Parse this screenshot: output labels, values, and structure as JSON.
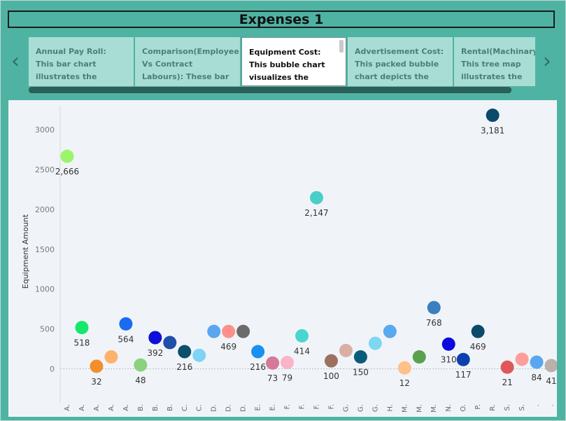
{
  "dashboard": {
    "title": "Expenses 1"
  },
  "nav": {
    "prev_icon": "chevron-left-icon",
    "next_icon": "chevron-right-icon"
  },
  "tabs": [
    {
      "label": "Annual Pay Roll: This bar chart illustrates the annual payroll"
    },
    {
      "label": "Comparison(Employee Vs Contract Labours): These bar charts"
    },
    {
      "label": "Equipment Cost: This bubble chart visualizes the expenditure on",
      "active": true
    },
    {
      "label": "Advertisement Cost: This packed bubble chart depicts the"
    },
    {
      "label": "Rental(Machinary) This tree map illustrates the"
    }
  ],
  "colors": {
    "background": "#4fb3a3",
    "plot_bg": "#f0f4f8"
  },
  "chart_data": {
    "type": "scatter",
    "ylabel": "Equipment Amount",
    "xlabel": "",
    "ylim": [
      -250,
      3300
    ],
    "yticks": [
      0,
      500,
      1000,
      1500,
      2000,
      2500,
      3000
    ],
    "ytick_labels": [
      "0",
      "500",
      "1000",
      "1500",
      "2000",
      "2500",
      "3000"
    ],
    "grid": false,
    "points": [
      {
        "x": "A.",
        "y": 2666,
        "label": "2,666",
        "color": "#9bf56a"
      },
      {
        "x": "A.",
        "y": 518,
        "label": "518",
        "color": "#17e86c"
      },
      {
        "x": "A.",
        "y": 32,
        "label": "32",
        "color": "#f28e2b"
      },
      {
        "x": "A.",
        "y": 150,
        "label": "",
        "color": "#ffb26b"
      },
      {
        "x": "A.",
        "y": 564,
        "label": "564",
        "color": "#1a6bf0"
      },
      {
        "x": "B.",
        "y": 48,
        "label": "48",
        "color": "#8cd17d"
      },
      {
        "x": "B.",
        "y": 392,
        "label": "392",
        "color": "#0f0fd8"
      },
      {
        "x": "B.",
        "y": 330,
        "label": "",
        "color": "#1f4fa8"
      },
      {
        "x": "C.",
        "y": 216,
        "label": "216",
        "color": "#0b4f6c"
      },
      {
        "x": "C.",
        "y": 170,
        "label": "",
        "color": "#7fd3f5"
      },
      {
        "x": "D.",
        "y": 469,
        "label": "",
        "color": "#5aa7f0"
      },
      {
        "x": "D.",
        "y": 469,
        "label": "469",
        "color": "#ff8f8a"
      },
      {
        "x": "D.",
        "y": 469,
        "label": "",
        "color": "#6b6b6b"
      },
      {
        "x": "E.",
        "y": 216,
        "label": "216",
        "color": "#1a8ff0"
      },
      {
        "x": "E.",
        "y": 73,
        "label": "73",
        "color": "#d6789a"
      },
      {
        "x": "F.",
        "y": 79,
        "label": "79",
        "color": "#f9b4c6"
      },
      {
        "x": "F.",
        "y": 414,
        "label": "414",
        "color": "#49d6cf"
      },
      {
        "x": "F.",
        "y": 2147,
        "label": "2,147",
        "color": "#49cfc8"
      },
      {
        "x": "F.",
        "y": 100,
        "label": "100",
        "color": "#9c7160"
      },
      {
        "x": "G.",
        "y": 230,
        "label": "",
        "color": "#d8b0a3"
      },
      {
        "x": "G.",
        "y": 150,
        "label": "150",
        "color": "#0b5c7a"
      },
      {
        "x": "G.",
        "y": 320,
        "label": "",
        "color": "#7dd6f2"
      },
      {
        "x": "H.",
        "y": 469,
        "label": "",
        "color": "#57a9f0"
      },
      {
        "x": "M.",
        "y": 12,
        "label": "12",
        "color": "#ffc08a"
      },
      {
        "x": "M.",
        "y": 150,
        "label": "",
        "color": "#59a14f"
      },
      {
        "x": "M.",
        "y": 768,
        "label": "768",
        "color": "#3a7fc0"
      },
      {
        "x": "N.",
        "y": 310,
        "label": "310",
        "color": "#0a0ae0"
      },
      {
        "x": "O.",
        "y": 117,
        "label": "117",
        "color": "#0a3fb0"
      },
      {
        "x": "P.",
        "y": 469,
        "label": "469",
        "color": "#0b4a6a"
      },
      {
        "x": "R.",
        "y": 3181,
        "label": "3,181",
        "color": "#0b4a6a"
      },
      {
        "x": "S.",
        "y": 21,
        "label": "21",
        "color": "#e15759"
      },
      {
        "x": "S.",
        "y": 120,
        "label": "",
        "color": "#ff9d9a"
      },
      {
        "x": ".",
        "y": 84,
        "label": "84",
        "color": "#5aa7f0"
      },
      {
        "x": ".",
        "y": 41,
        "label": "41",
        "color": "#bab0ac"
      }
    ]
  }
}
